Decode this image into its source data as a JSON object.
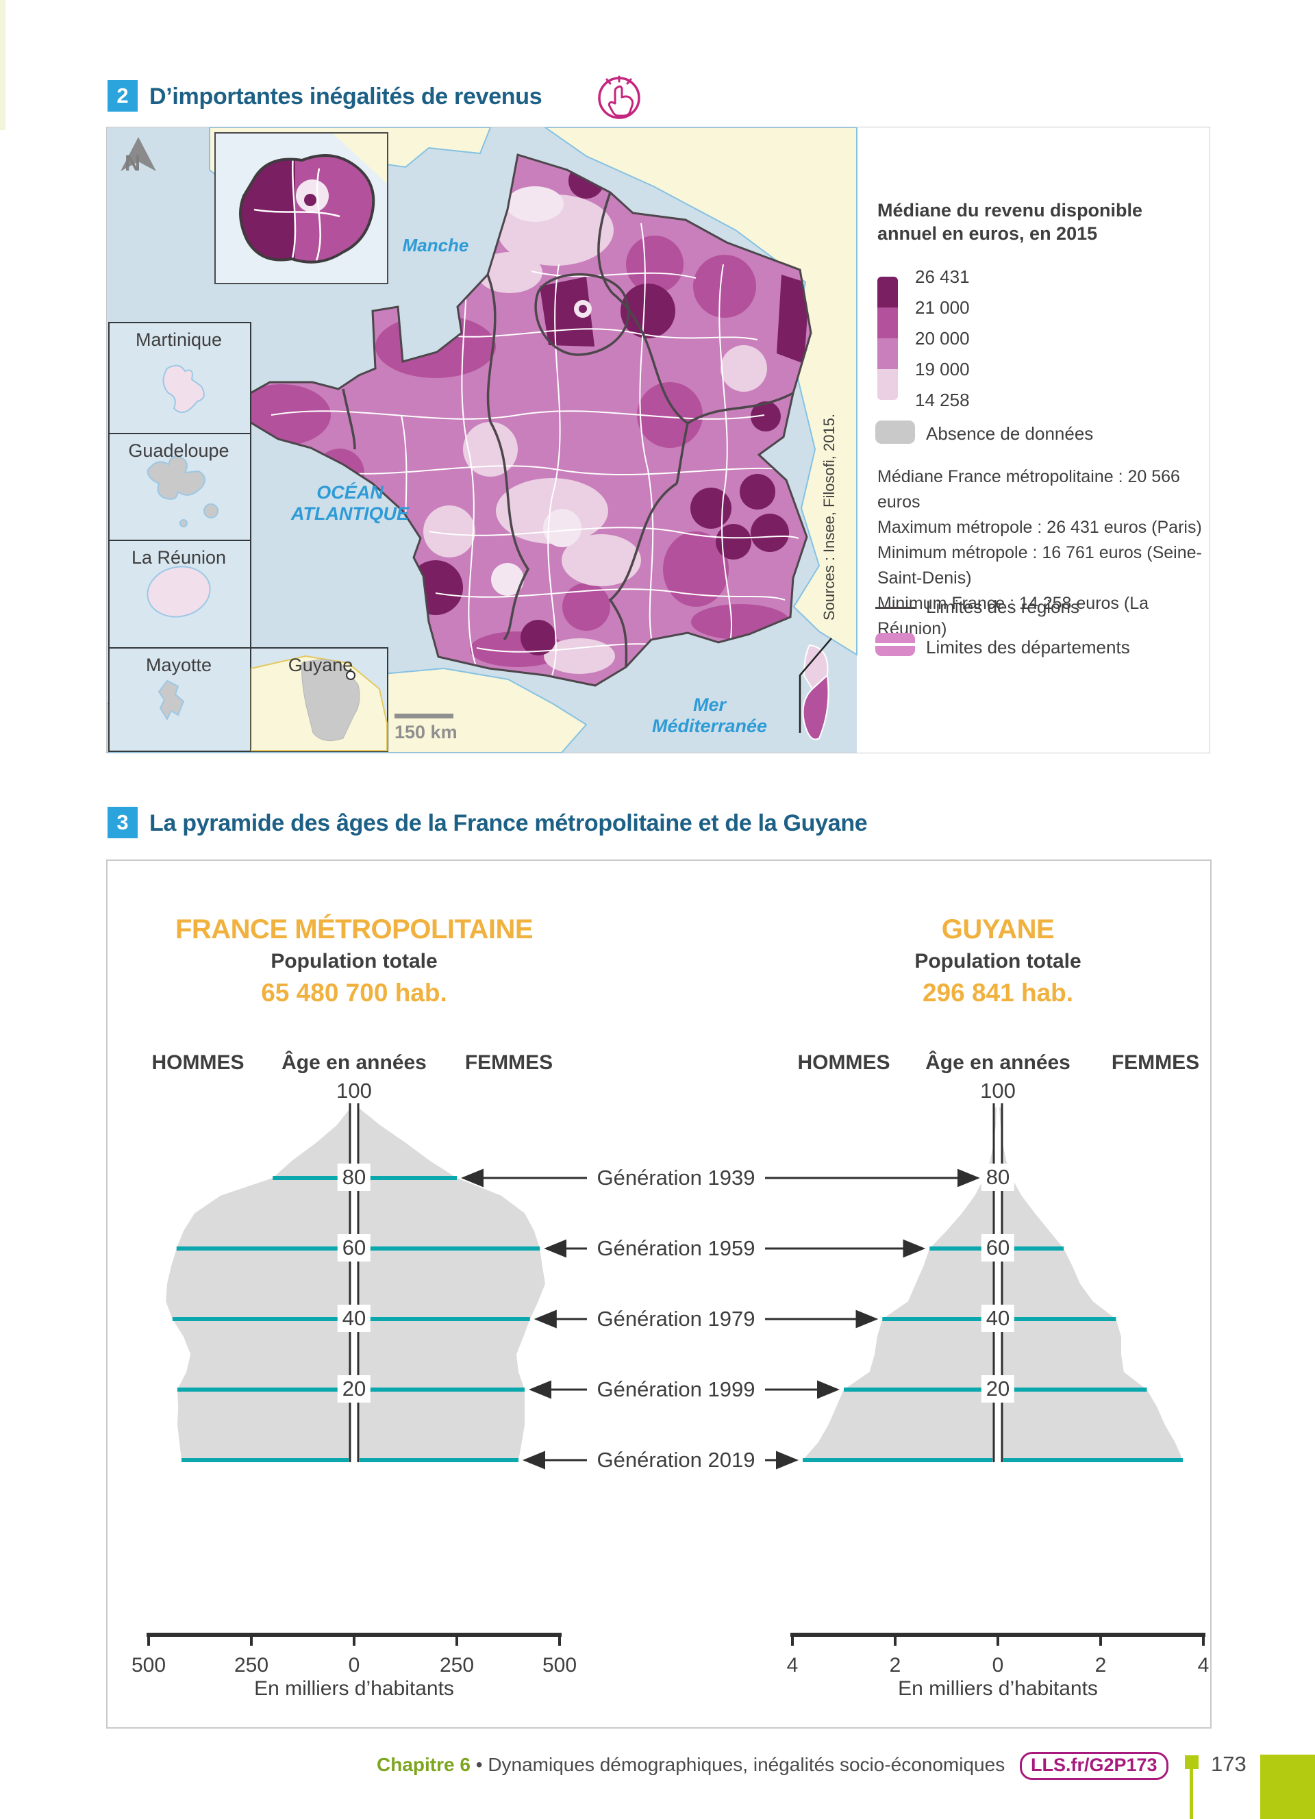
{
  "section2": {
    "number": "2",
    "title": "D’importantes inégalités de revenus"
  },
  "section3": {
    "number": "3",
    "title": "La pyramide des âges de la France métropolitaine et de la Guyane"
  },
  "map": {
    "legend_title": "Médiane du revenu disponible annuel en euros, en 2015",
    "scale_labels": [
      "26 431",
      "21 000",
      "20 000",
      "19 000",
      "14 258"
    ],
    "scale_colors": [
      "#7A1F61",
      "#B4519C",
      "#C87FBB",
      "#EBCFE3"
    ],
    "no_data_label": "Absence de données",
    "no_data_color": "#C9C9C9",
    "stats": [
      "Médiane France métropolitaine : 20 566 euros",
      "Maximum métropole : 26 431 euros (Paris)",
      "Minimum métropole : 16 761  euros (Seine-Saint-Denis)",
      "Minimum France : 14 258 euros (La Réunion)"
    ],
    "limits": [
      {
        "label": "Limites des régions"
      },
      {
        "label": "Limites des départements"
      }
    ],
    "sea_labels": {
      "manche": "Manche",
      "atlantique": "OCÉAN ATLANTIQUE",
      "mediterranee": "Mer Méditerranée"
    },
    "territories": [
      "Martinique",
      "Guadeloupe",
      "La Réunion",
      "Mayotte",
      "Guyane"
    ],
    "north": "N",
    "scale_bar": "150 km",
    "source": "Sources : Insee, Filosofi, 2015."
  },
  "chart_data": {
    "type": "population-pyramid-pair",
    "men_label": "HOMMES",
    "women_label": "FEMMES",
    "age_axis_label": "Âge en années",
    "age_ticks": [
      "100",
      "80",
      "60",
      "40",
      "20"
    ],
    "generations": [
      {
        "label": "Génération 1939",
        "age": 80
      },
      {
        "label": "Génération 1959",
        "age": 60
      },
      {
        "label": "Génération 1979",
        "age": 40
      },
      {
        "label": "Génération 1999",
        "age": 20
      },
      {
        "label": "Génération 2019",
        "age": 0
      }
    ],
    "pyramids": [
      {
        "region": "FRANCE MÉTROPOLITAINE",
        "population_caption": "Population totale",
        "population_total": "65 480 700 hab.",
        "x_unit": "En milliers d’habitants",
        "x_ticks": [
          "500",
          "250",
          "0",
          "250",
          "500"
        ],
        "x_max": 500,
        "unit": "thousands of inhabitants per year of age",
        "ages": [
          0,
          5,
          10,
          15,
          20,
          25,
          30,
          35,
          40,
          45,
          50,
          55,
          60,
          65,
          70,
          75,
          80,
          85,
          90,
          95,
          100
        ],
        "men": [
          420,
          425,
          430,
          428,
          430,
          408,
          398,
          415,
          442,
          458,
          455,
          445,
          432,
          415,
          388,
          325,
          198,
          150,
          92,
          42,
          8
        ],
        "women": [
          400,
          408,
          415,
          415,
          415,
          400,
          395,
          412,
          428,
          448,
          465,
          458,
          452,
          438,
          415,
          358,
          250,
          183,
          125,
          63,
          10
        ]
      },
      {
        "region": "GUYANE",
        "population_caption": "Population totale",
        "population_total": "296 841 hab.",
        "x_unit": "En milliers d’habitants",
        "x_ticks": [
          "4",
          "2",
          "0",
          "2",
          "4"
        ],
        "x_max": 4,
        "unit": "thousands of inhabitants per year of age",
        "ages": [
          0,
          5,
          10,
          15,
          20,
          25,
          30,
          35,
          40,
          45,
          50,
          55,
          60,
          65,
          70,
          75,
          80,
          85,
          90,
          95,
          100
        ],
        "men": [
          3.8,
          3.5,
          3.3,
          3.15,
          3.0,
          2.5,
          2.4,
          2.35,
          2.25,
          1.75,
          1.6,
          1.45,
          1.33,
          1.0,
          0.7,
          0.45,
          0.27,
          0.15,
          0.08,
          0.04,
          0.02
        ],
        "women": [
          3.6,
          3.45,
          3.25,
          3.1,
          2.9,
          2.45,
          2.4,
          2.4,
          2.3,
          1.85,
          1.6,
          1.45,
          1.28,
          1.0,
          0.72,
          0.46,
          0.27,
          0.16,
          0.09,
          0.05,
          0.02
        ]
      }
    ]
  },
  "footer": {
    "chapter": "Chapitre 6",
    "separator": "•",
    "title": "Dynamiques démographiques, inégalités socio-économiques",
    "link": "LLS.fr/G2P173",
    "page_number": "173"
  }
}
